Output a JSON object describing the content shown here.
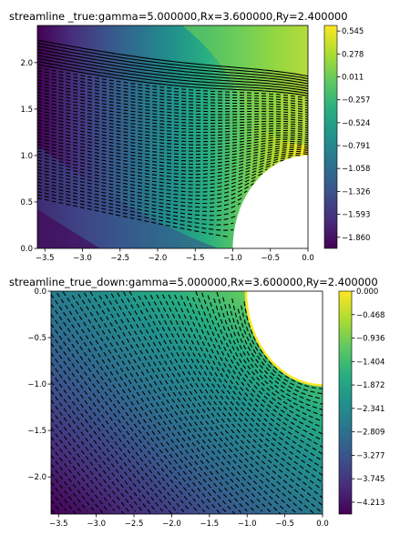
{
  "chart_data": [
    {
      "type": "contour",
      "title": "streamline _true:gamma=5.000000,Rx=3.600000,Ry=2.400000",
      "xlabel": "",
      "ylabel": "",
      "xlim": [
        -3.6,
        0.0
      ],
      "ylim": [
        0.0,
        2.4
      ],
      "x_ticks": [
        "−3.5",
        "−3.0",
        "−2.5",
        "−2.0",
        "−1.5",
        "−1.0",
        "−0.5",
        "0.0"
      ],
      "y_ticks": [
        "0.0",
        "0.5",
        "1.0",
        "1.5",
        "2.0"
      ],
      "colorbar": {
        "range": [
          -1.99,
          0.61
        ],
        "ticks": [
          "0.545",
          "0.278",
          "0.011",
          "−0.257",
          "−0.524",
          "−0.791",
          "−1.058",
          "−1.326",
          "−1.593",
          "−1.860"
        ],
        "colormap": "viridis"
      },
      "obstacle": {
        "shape": "circle",
        "center": [
          0.0,
          0.0
        ],
        "radius": 1.0
      },
      "grid": false
    },
    {
      "type": "contour",
      "title": "streamline_true_down:gamma=5.000000,Rx=3.600000,Ry=2.400000",
      "xlabel": "",
      "ylabel": "",
      "xlim": [
        -3.6,
        0.0
      ],
      "ylim": [
        -2.4,
        0.0
      ],
      "x_ticks": [
        "−3.5",
        "−3.0",
        "−2.5",
        "−2.0",
        "−1.5",
        "−1.0",
        "−0.5",
        "0.0"
      ],
      "y_ticks": [
        "0.0",
        "−0.5",
        "−1.0",
        "−1.5",
        "−2.0"
      ],
      "colorbar": {
        "range": [
          -4.45,
          0.0
        ],
        "ticks": [
          "0.000",
          "−0.468",
          "−0.936",
          "−1.404",
          "−1.872",
          "−2.341",
          "−2.809",
          "−3.277",
          "−3.745",
          "−4.213"
        ],
        "colormap": "viridis"
      },
      "obstacle": {
        "shape": "circle",
        "center": [
          0.0,
          0.0
        ],
        "radius": 1.0
      },
      "grid": false
    }
  ]
}
